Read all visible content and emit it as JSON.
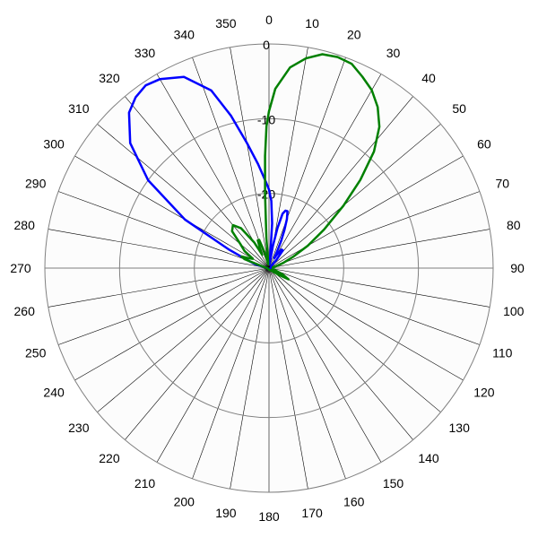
{
  "chart_data": {
    "type": "line",
    "subtype": "polar",
    "title": "",
    "angle_direction": "clockwise",
    "zero_angle_position": "top",
    "angle_tick_step": 10,
    "angle_labels": [
      "0",
      "10",
      "20",
      "30",
      "40",
      "50",
      "60",
      "70",
      "80",
      "90",
      "100",
      "110",
      "120",
      "130",
      "140",
      "150",
      "160",
      "170",
      "180",
      "190",
      "200",
      "210",
      "220",
      "230",
      "240",
      "250",
      "260",
      "270",
      "280",
      "290",
      "300",
      "310",
      "320",
      "330",
      "340",
      "350"
    ],
    "r_range": [
      -30,
      0
    ],
    "r_ticks": [
      0,
      -10,
      -20
    ],
    "r_tick_labels": [
      "0",
      "-10",
      "-20"
    ],
    "grid": true,
    "series": [
      {
        "color": "#0000ff",
        "points": [
          [
            0,
            -19.5
          ],
          [
            2,
            -21
          ],
          [
            4,
            -24
          ],
          [
            6,
            -28.5
          ],
          [
            8,
            -29.5
          ],
          [
            10,
            -27
          ],
          [
            12,
            -24.5
          ],
          [
            14,
            -22.5
          ],
          [
            16,
            -22
          ],
          [
            18,
            -22
          ],
          [
            20,
            -23
          ],
          [
            22,
            -24.5
          ],
          [
            24,
            -26
          ],
          [
            26,
            -27.5
          ],
          [
            28,
            -28.5
          ],
          [
            30,
            -28
          ],
          [
            34,
            -27
          ],
          [
            38,
            -27
          ],
          [
            42,
            -28.5
          ],
          [
            46,
            -29.5
          ],
          [
            60,
            -29.7
          ],
          [
            90,
            -29.8
          ],
          [
            180,
            -29.8
          ],
          [
            270,
            -29.8
          ],
          [
            280,
            -29.4
          ],
          [
            283,
            -29
          ],
          [
            286,
            -28
          ],
          [
            290,
            -27
          ],
          [
            295,
            -24
          ],
          [
            300,
            -17
          ],
          [
            306,
            -10
          ],
          [
            312,
            -5
          ],
          [
            318,
            -2
          ],
          [
            322,
            -1
          ],
          [
            326,
            -0.5
          ],
          [
            330,
            -0.8
          ],
          [
            336,
            -2
          ],
          [
            342,
            -5
          ],
          [
            346,
            -9
          ],
          [
            350,
            -13
          ],
          [
            354,
            -16
          ],
          [
            358,
            -18.5
          ],
          [
            360,
            -19.5
          ]
        ]
      },
      {
        "color": "#008000",
        "points": [
          [
            0,
            -9
          ],
          [
            2,
            -6
          ],
          [
            6,
            -3
          ],
          [
            10,
            -1.5
          ],
          [
            14,
            -0.5
          ],
          [
            18,
            -0.3
          ],
          [
            22,
            -0.5
          ],
          [
            26,
            -1.5
          ],
          [
            30,
            -2.5
          ],
          [
            34,
            -4
          ],
          [
            38,
            -6
          ],
          [
            42,
            -9
          ],
          [
            46,
            -13
          ],
          [
            50,
            -17
          ],
          [
            55,
            -21
          ],
          [
            60,
            -24
          ],
          [
            65,
            -26.5
          ],
          [
            70,
            -28
          ],
          [
            75,
            -29
          ],
          [
            80,
            -29.5
          ],
          [
            100,
            -29.5
          ],
          [
            115,
            -28
          ],
          [
            120,
            -27
          ],
          [
            125,
            -28.5
          ],
          [
            135,
            -29.5
          ],
          [
            180,
            -29.8
          ],
          [
            270,
            -29.8
          ],
          [
            280,
            -29.5
          ],
          [
            285,
            -29
          ],
          [
            290,
            -26.5
          ],
          [
            293,
            -26
          ],
          [
            296,
            -27
          ],
          [
            300,
            -27.5
          ],
          [
            305,
            -26
          ],
          [
            310,
            -25
          ],
          [
            315,
            -23
          ],
          [
            320,
            -22.5
          ],
          [
            325,
            -23.5
          ],
          [
            330,
            -26
          ],
          [
            333,
            -28
          ],
          [
            336,
            -27
          ],
          [
            338,
            -26
          ],
          [
            341,
            -26
          ],
          [
            345,
            -28
          ],
          [
            348,
            -29.5
          ],
          [
            352,
            -29.2
          ],
          [
            355,
            -26
          ],
          [
            357,
            -20
          ],
          [
            358,
            -15
          ],
          [
            359,
            -11
          ],
          [
            360,
            -9
          ]
        ]
      }
    ]
  }
}
